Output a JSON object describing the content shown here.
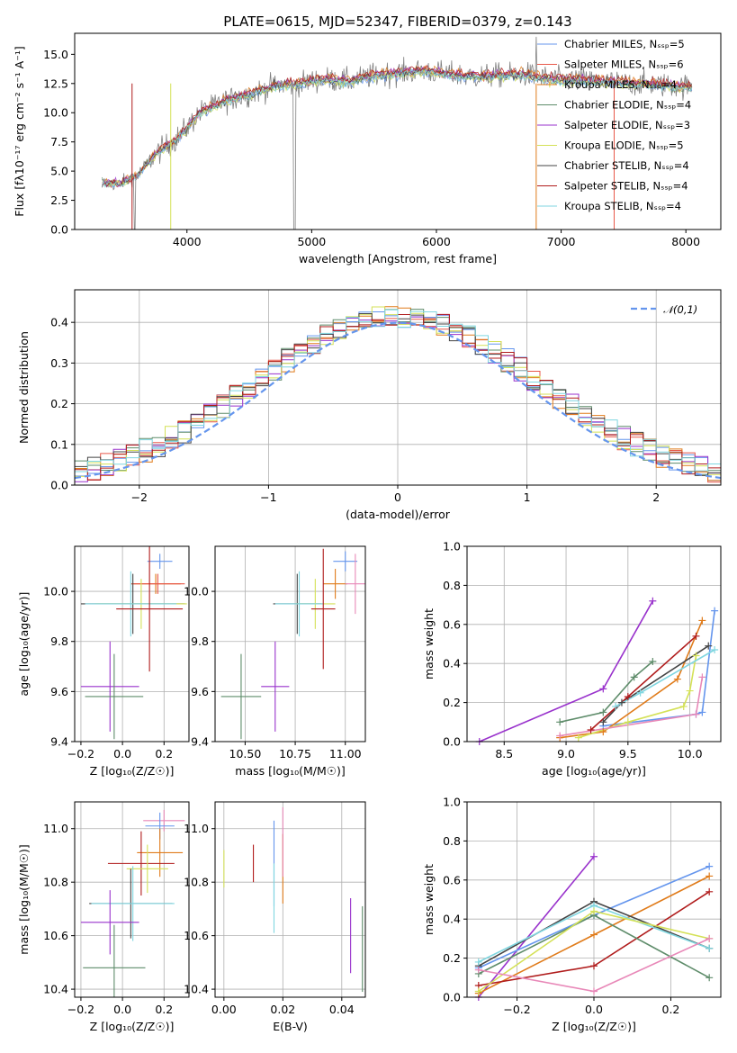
{
  "chart_data": [
    {
      "type": "line",
      "title": "PLATE=0615, MJD=52347, FIBERID=0379, z=0.143",
      "xlabel": "wavelength [Angstrom, rest frame]",
      "ylabel": "Flux [fλ10⁻¹⁷ erg cm⁻² s⁻¹ A⁻¹]",
      "xlim": [
        3100,
        8280
      ],
      "ylim": [
        0,
        16.8
      ],
      "xticks": [
        4000,
        5000,
        6000,
        7000,
        8000
      ],
      "yticks": [
        0.0,
        2.5,
        5.0,
        7.5,
        10.0,
        12.5,
        15.0
      ],
      "grid": false,
      "legend_position": "top-right",
      "legend": [
        "Chabrier MILES, N_SSP=5",
        "Salpeter MILES, N_SSP=6",
        "Kroupa MILES, N_SSP=4",
        "Chabrier ELODIE, N_SSP=4",
        "Salpeter ELODIE, N_SSP=3",
        "Kroupa ELODIE, N_SSP=5",
        "Chabrier STELIB, N_SSP=4",
        "Salpeter STELIB, N_SSP=4",
        "Kroupa STELIB, N_SSP=4"
      ],
      "colors": [
        "#6495ed",
        "#e8584a",
        "#e07b1a",
        "#5e8c6a",
        "#9932cc",
        "#d4e157",
        "#444444",
        "#b01c1c",
        "#7fd6e0"
      ],
      "data_color": "#808080",
      "continuum": {
        "x": [
          3300,
          3450,
          3600,
          3750,
          3900,
          4000,
          4100,
          4300,
          4500,
          4700,
          4900,
          5100,
          5300,
          5500,
          5700,
          5900,
          6100,
          6300,
          6500,
          6700,
          6900,
          7100,
          7300,
          7500,
          7700,
          7900,
          8050
        ],
        "y": [
          4.0,
          3.9,
          4.6,
          6.5,
          7.6,
          8.7,
          10.0,
          11.0,
          11.6,
          12.3,
          12.5,
          12.9,
          12.7,
          13.2,
          13.4,
          13.6,
          13.3,
          13.1,
          13.2,
          13.3,
          12.9,
          12.8,
          12.7,
          12.5,
          12.5,
          12.3,
          12.2
        ]
      }
    },
    {
      "type": "histogram",
      "xlabel": "(data-model)/error",
      "ylabel": "Normed distribution",
      "xlim": [
        -2.5,
        2.5
      ],
      "ylim": [
        0,
        0.48
      ],
      "xticks": [
        -2,
        -1,
        0,
        1,
        2
      ],
      "yticks": [
        0.0,
        0.1,
        0.2,
        0.3,
        0.4
      ],
      "grid": true,
      "legend_position": "top-right",
      "legend": [
        "𝒩(0,1)"
      ],
      "normal_color": "#6495ed",
      "bin_width": 0.1
    },
    {
      "type": "errorbar",
      "xlabel": "Z [log₁₀(Z/Z☉)]",
      "ylabel": "age  [log₁₀(age/yr)]",
      "xlim": [
        -0.23,
        0.32
      ],
      "ylim": [
        9.4,
        10.18
      ],
      "xticks": [
        -0.2,
        0.0,
        0.2
      ],
      "xticklabels": [
        "−0.2",
        "0.0",
        "0.2"
      ],
      "yticks": [
        9.4,
        9.6,
        9.8,
        10.0
      ],
      "grid": true,
      "points": [
        {
          "x": 0.18,
          "xerr": 0.06,
          "y": 10.12,
          "yerr": 0.03,
          "color": "#6495ed"
        },
        {
          "x": 0.16,
          "xerr": 0.12,
          "y": 10.03,
          "yerr": 0.04,
          "color": "#e07b1a"
        },
        {
          "x": 0.17,
          "xerr": 0.13,
          "y": 10.03,
          "yerr": 0.04,
          "color": "#e8584a"
        },
        {
          "x": 0.05,
          "xerr": 0.25,
          "y": 9.95,
          "yerr": 0.12,
          "color": "#444444"
        },
        {
          "x": 0.09,
          "xerr": 0.22,
          "y": 9.95,
          "yerr": 0.1,
          "color": "#d4e157"
        },
        {
          "x": 0.04,
          "xerr": 0.22,
          "y": 9.95,
          "yerr": 0.13,
          "color": "#7fd6e0"
        },
        {
          "x": 0.13,
          "xerr": 0.16,
          "y": 9.93,
          "yerr": 0.25,
          "color": "#b01c1c"
        },
        {
          "x": -0.06,
          "xerr": 0.14,
          "y": 9.62,
          "yerr": 0.18,
          "color": "#9932cc"
        },
        {
          "x": -0.04,
          "xerr": 0.14,
          "y": 9.58,
          "yerr": 0.17,
          "color": "#5e8c6a"
        }
      ]
    },
    {
      "type": "errorbar",
      "xlabel": "mass [log₁₀(M/M☉)]",
      "ylabel": "",
      "xlim": [
        10.35,
        11.1
      ],
      "ylim": [
        9.4,
        10.18
      ],
      "xticks": [
        10.5,
        10.75,
        11.0
      ],
      "xticklabels": [
        "10.50",
        "10.75",
        "11.00"
      ],
      "yticks": [
        9.4,
        9.6,
        9.8,
        10.0
      ],
      "grid": true,
      "points": [
        {
          "x": 11.0,
          "xerr": 0.06,
          "y": 10.12,
          "yerr": 0.04,
          "color": "#6495ed"
        },
        {
          "x": 10.95,
          "xerr": 0.06,
          "y": 10.03,
          "yerr": 0.06,
          "color": "#e07b1a"
        },
        {
          "x": 11.05,
          "xerr": 0.05,
          "y": 10.03,
          "yerr": 0.12,
          "color": "#e888b8"
        },
        {
          "x": 10.76,
          "xerr": 0.12,
          "y": 9.95,
          "yerr": 0.12,
          "color": "#444444"
        },
        {
          "x": 10.85,
          "xerr": 0.1,
          "y": 9.95,
          "yerr": 0.1,
          "color": "#d4e157"
        },
        {
          "x": 10.77,
          "xerr": 0.12,
          "y": 9.95,
          "yerr": 0.13,
          "color": "#7fd6e0"
        },
        {
          "x": 10.89,
          "xerr": 0.06,
          "y": 9.93,
          "yerr": 0.24,
          "color": "#b01c1c"
        },
        {
          "x": 10.65,
          "xerr": 0.07,
          "y": 9.62,
          "yerr": 0.18,
          "color": "#9932cc"
        },
        {
          "x": 10.48,
          "xerr": 0.1,
          "y": 9.58,
          "yerr": 0.17,
          "color": "#5e8c6a"
        }
      ]
    },
    {
      "type": "line",
      "xlabel": "age  [log₁₀(age/yr)]",
      "ylabel": "mass weight",
      "xlim": [
        8.2,
        10.25
      ],
      "ylim": [
        0,
        1
      ],
      "xticks": [
        8.5,
        9.0,
        9.5,
        10.0
      ],
      "yticks": [
        0.0,
        0.2,
        0.4,
        0.6,
        0.8,
        1.0
      ],
      "grid": true,
      "series": [
        {
          "color": "#9932cc",
          "x": [
            8.3,
            9.3,
            9.7
          ],
          "y": [
            0.0,
            0.27,
            0.72
          ]
        },
        {
          "color": "#6495ed",
          "x": [
            9.3,
            10.05,
            10.1,
            10.2
          ],
          "y": [
            0.08,
            0.14,
            0.15,
            0.67
          ]
        },
        {
          "color": "#e07b1a",
          "x": [
            8.95,
            9.3,
            9.9,
            10.1
          ],
          "y": [
            0.02,
            0.05,
            0.32,
            0.62
          ]
        },
        {
          "color": "#5e8c6a",
          "x": [
            8.95,
            9.3,
            9.55,
            9.7
          ],
          "y": [
            0.1,
            0.15,
            0.33,
            0.41
          ]
        },
        {
          "color": "#d4e157",
          "x": [
            9.1,
            9.5,
            9.95,
            10.0,
            10.05
          ],
          "y": [
            0.02,
            0.1,
            0.18,
            0.26,
            0.44
          ]
        },
        {
          "color": "#444444",
          "x": [
            9.3,
            9.45,
            10.15
          ],
          "y": [
            0.1,
            0.2,
            0.49
          ]
        },
        {
          "color": "#b01c1c",
          "x": [
            9.2,
            9.5,
            10.05
          ],
          "y": [
            0.06,
            0.23,
            0.54
          ]
        },
        {
          "color": "#7fd6e0",
          "x": [
            9.4,
            9.6,
            10.2
          ],
          "y": [
            0.18,
            0.25,
            0.47
          ]
        },
        {
          "color": "#e888b8",
          "x": [
            8.95,
            10.05,
            10.1
          ],
          "y": [
            0.03,
            0.14,
            0.33
          ]
        }
      ]
    },
    {
      "type": "errorbar",
      "xlabel": "Z [log₁₀(Z/Z☉)]",
      "ylabel": "mass [log₁₀(M/M☉)]",
      "xlim": [
        -0.23,
        0.32
      ],
      "ylim": [
        10.37,
        11.1
      ],
      "xticks": [
        -0.2,
        0.0,
        0.2
      ],
      "xticklabels": [
        "−0.2",
        "0.0",
        "0.2"
      ],
      "yticks": [
        10.4,
        10.6,
        10.8,
        11.0
      ],
      "grid": true,
      "points": [
        {
          "x": 0.2,
          "xerr": 0.1,
          "y": 11.03,
          "yerr": 0.04,
          "color": "#e888b8"
        },
        {
          "x": 0.18,
          "xerr": 0.07,
          "y": 11.01,
          "yerr": 0.05,
          "color": "#6495ed"
        },
        {
          "x": 0.18,
          "xerr": 0.11,
          "y": 10.91,
          "yerr": 0.09,
          "color": "#e07b1a"
        },
        {
          "x": 0.09,
          "xerr": 0.16,
          "y": 10.87,
          "yerr": 0.12,
          "color": "#b01c1c"
        },
        {
          "x": 0.12,
          "xerr": 0.1,
          "y": 10.85,
          "yerr": 0.09,
          "color": "#d4e157"
        },
        {
          "x": 0.04,
          "xerr": 0.2,
          "y": 10.72,
          "yerr": 0.13,
          "color": "#444444"
        },
        {
          "x": 0.05,
          "xerr": 0.2,
          "y": 10.72,
          "yerr": 0.14,
          "color": "#7fd6e0"
        },
        {
          "x": -0.06,
          "xerr": 0.14,
          "y": 10.65,
          "yerr": 0.12,
          "color": "#9932cc"
        },
        {
          "x": -0.04,
          "xerr": 0.15,
          "y": 10.48,
          "yerr": 0.16,
          "color": "#5e8c6a"
        }
      ]
    },
    {
      "type": "errorbar",
      "xlabel": "E(B-V)",
      "ylabel": "",
      "xlim": [
        -0.003,
        0.048
      ],
      "ylim": [
        10.37,
        11.1
      ],
      "xticks": [
        0.0,
        0.02,
        0.04
      ],
      "xticklabels": [
        "0.00",
        "0.02",
        "0.04"
      ],
      "yticks": [
        10.4,
        10.6,
        10.8,
        11.0
      ],
      "grid": true,
      "points": [
        {
          "x": 0.0,
          "xerr": 0,
          "y": 10.85,
          "yerr": 0.07,
          "color": "#d4e157"
        },
        {
          "x": 0.01,
          "xerr": 0,
          "y": 10.87,
          "yerr": 0.07,
          "color": "#b01c1c"
        },
        {
          "x": 0.017,
          "xerr": 0,
          "y": 10.87,
          "yerr": 0.16,
          "color": "#6495ed"
        },
        {
          "x": 0.017,
          "xerr": 0,
          "y": 10.74,
          "yerr": 0.13,
          "color": "#7fd6e0"
        },
        {
          "x": 0.02,
          "xerr": 0,
          "y": 10.85,
          "yerr": 0.13,
          "color": "#e07b1a"
        },
        {
          "x": 0.02,
          "xerr": 0,
          "y": 10.95,
          "yerr": 0.13,
          "color": "#e888b8"
        },
        {
          "x": 0.043,
          "xerr": 0,
          "y": 10.6,
          "yerr": 0.14,
          "color": "#9932cc"
        },
        {
          "x": 0.047,
          "xerr": 0,
          "y": 10.55,
          "yerr": 0.16,
          "color": "#5e8c6a"
        }
      ]
    },
    {
      "type": "line",
      "xlabel": "Z [log₁₀(Z/Z☉)]",
      "ylabel": "mass weight",
      "xlim": [
        -0.33,
        0.33
      ],
      "ylim": [
        0,
        1
      ],
      "xticks": [
        -0.2,
        0.0,
        0.2
      ],
      "xticklabels": [
        "−0.2",
        "0.0",
        "0.2"
      ],
      "yticks": [
        0.0,
        0.2,
        0.4,
        0.6,
        0.8,
        1.0
      ],
      "grid": true,
      "series": [
        {
          "color": "#9932cc",
          "x": [
            -0.3,
            0.0
          ],
          "y": [
            0.0,
            0.72
          ]
        },
        {
          "color": "#6495ed",
          "x": [
            -0.3,
            0.0,
            0.3
          ],
          "y": [
            0.15,
            0.42,
            0.67
          ]
        },
        {
          "color": "#e07b1a",
          "x": [
            -0.3,
            0.0,
            0.3
          ],
          "y": [
            0.02,
            0.32,
            0.62
          ]
        },
        {
          "color": "#b01c1c",
          "x": [
            -0.3,
            0.0,
            0.3
          ],
          "y": [
            0.06,
            0.16,
            0.54
          ]
        },
        {
          "color": "#444444",
          "x": [
            -0.3,
            0.0,
            0.3
          ],
          "y": [
            0.16,
            0.49,
            0.25
          ]
        },
        {
          "color": "#5e8c6a",
          "x": [
            -0.3,
            0.0,
            0.3
          ],
          "y": [
            0.12,
            0.42,
            0.1
          ]
        },
        {
          "color": "#7fd6e0",
          "x": [
            -0.3,
            0.0,
            0.3
          ],
          "y": [
            0.18,
            0.47,
            0.25
          ]
        },
        {
          "color": "#d4e157",
          "x": [
            -0.3,
            0.0,
            0.3
          ],
          "y": [
            0.03,
            0.44,
            0.3
          ]
        },
        {
          "color": "#e888b8",
          "x": [
            -0.3,
            0.0,
            0.3
          ],
          "y": [
            0.14,
            0.03,
            0.3
          ]
        }
      ]
    }
  ]
}
